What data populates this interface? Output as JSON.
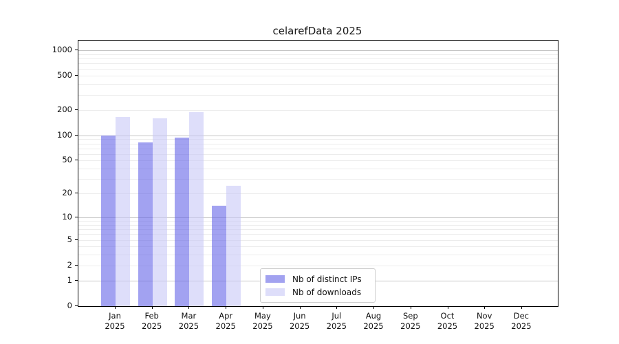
{
  "chart_data": {
    "type": "bar",
    "title": "celarefData 2025",
    "categories": [
      "Jan",
      "Feb",
      "Mar",
      "Apr",
      "May",
      "Jun",
      "Jul",
      "Aug",
      "Sep",
      "Oct",
      "Nov",
      "Dec"
    ],
    "year_label": "2025",
    "series": [
      {
        "name": "Nb of distinct IPs",
        "color": "#a2a2f0",
        "fill": "rgba(100,100,232,0.6)",
        "values": [
          100,
          83,
          94,
          14,
          0,
          0,
          0,
          0,
          0,
          0,
          0,
          0
        ]
      },
      {
        "name": "Nb of downloads",
        "color": "#dedefa",
        "fill": "rgba(200,200,246,0.6)",
        "values": [
          165,
          160,
          187,
          25,
          0,
          0,
          0,
          0,
          0,
          0,
          0,
          0
        ]
      }
    ],
    "y_ticks": [
      0,
      1,
      2,
      5,
      10,
      20,
      50,
      100,
      200,
      500,
      1000
    ],
    "y_scale": "log1p",
    "ylim": [
      0,
      1300
    ],
    "xlabel": "",
    "ylabel": "",
    "grid": true,
    "grid_major_color": "#c4c4c4",
    "grid_minor_color": "#ececec",
    "axis_color": "#000000",
    "legend_position": "lower center"
  }
}
